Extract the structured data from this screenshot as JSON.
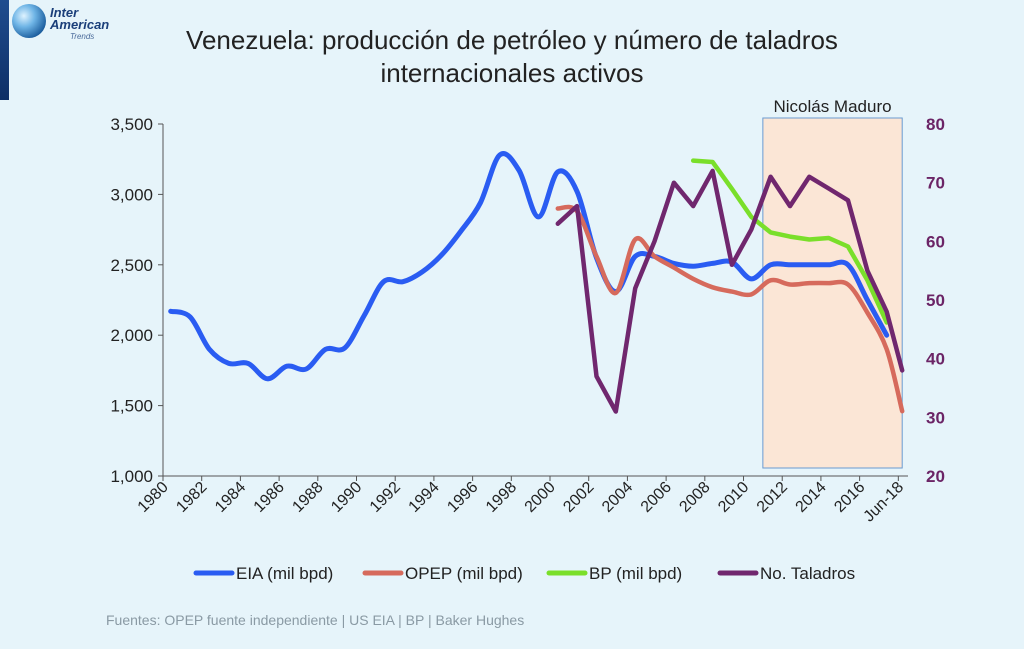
{
  "header": {
    "logo_line1": "Inter",
    "logo_line2": "American",
    "logo_line3": "Trends"
  },
  "footer": {
    "source": "Fuentes: OPEP fuente independiente | US EIA | BP | Baker Hughes"
  },
  "chart_data": {
    "type": "line",
    "title_line1": "Venezuela: producción de petróleo y número de taladros",
    "title_line2": "internacionales activos",
    "annotation": "Nicolás Maduro",
    "shaded_period": [
      2011,
      2018.2
    ],
    "x_range": [
      1980,
      2018.5
    ],
    "x_ticks": [
      {
        "x": 1980,
        "label": "1980"
      },
      {
        "x": 1982,
        "label": "1982"
      },
      {
        "x": 1984,
        "label": "1984"
      },
      {
        "x": 1986,
        "label": "1986"
      },
      {
        "x": 1988,
        "label": "1988"
      },
      {
        "x": 1990,
        "label": "1990"
      },
      {
        "x": 1992,
        "label": "1992"
      },
      {
        "x": 1994,
        "label": "1994"
      },
      {
        "x": 1996,
        "label": "1996"
      },
      {
        "x": 1998,
        "label": "1998"
      },
      {
        "x": 2000,
        "label": "2000"
      },
      {
        "x": 2002,
        "label": "2002"
      },
      {
        "x": 2004,
        "label": "2004"
      },
      {
        "x": 2006,
        "label": "2006"
      },
      {
        "x": 2008,
        "label": "2008"
      },
      {
        "x": 2010,
        "label": "2010"
      },
      {
        "x": 2012,
        "label": "2012"
      },
      {
        "x": 2014,
        "label": "2014"
      },
      {
        "x": 2016,
        "label": "2016"
      },
      {
        "x": 2018,
        "label": "Jun-18"
      }
    ],
    "y_left": {
      "min": 1000,
      "max": 3500,
      "ticks": [
        1000,
        1500,
        2000,
        2500,
        3000,
        3500
      ],
      "tick_labels": [
        "1,000",
        "1,500",
        "2,000",
        "2,500",
        "3,000",
        "3,500"
      ]
    },
    "y_right": {
      "min": 20,
      "max": 80,
      "ticks": [
        20,
        30,
        40,
        50,
        60,
        70,
        80
      ],
      "tick_labels": [
        "20",
        "30",
        "40",
        "50",
        "60",
        "70",
        "80"
      ]
    },
    "legend_position": "bottom",
    "series": [
      {
        "name": "EIA (mil bpd)",
        "axis": "left",
        "color": "#2a5cf2",
        "smooth": true,
        "points": [
          [
            1980.4,
            2170
          ],
          [
            1981.4,
            2130
          ],
          [
            1982.4,
            1900
          ],
          [
            1983.4,
            1800
          ],
          [
            1984.4,
            1800
          ],
          [
            1985.4,
            1690
          ],
          [
            1986.4,
            1780
          ],
          [
            1987.4,
            1760
          ],
          [
            1988.4,
            1900
          ],
          [
            1989.4,
            1910
          ],
          [
            1990.4,
            2140
          ],
          [
            1991.4,
            2380
          ],
          [
            1992.4,
            2380
          ],
          [
            1993.4,
            2450
          ],
          [
            1994.4,
            2570
          ],
          [
            1995.4,
            2740
          ],
          [
            1996.4,
            2940
          ],
          [
            1997.4,
            3280
          ],
          [
            1998.4,
            3170
          ],
          [
            1999.4,
            2840
          ],
          [
            2000.4,
            3160
          ],
          [
            2001.4,
            3020
          ],
          [
            2002.4,
            2550
          ],
          [
            2003.4,
            2310
          ],
          [
            2004.4,
            2560
          ],
          [
            2005.4,
            2560
          ],
          [
            2006.4,
            2510
          ],
          [
            2007.4,
            2490
          ],
          [
            2008.4,
            2510
          ],
          [
            2009.4,
            2520
          ],
          [
            2010.4,
            2400
          ],
          [
            2011.4,
            2500
          ],
          [
            2012.4,
            2500
          ],
          [
            2013.4,
            2500
          ],
          [
            2014.4,
            2500
          ],
          [
            2015.4,
            2500
          ],
          [
            2016.4,
            2250
          ],
          [
            2017.4,
            2000
          ]
        ]
      },
      {
        "name": "OPEP (mil bpd)",
        "axis": "left",
        "color": "#d66a5c",
        "smooth": true,
        "points": [
          [
            2000.4,
            2900
          ],
          [
            2001.4,
            2880
          ],
          [
            2002.4,
            2560
          ],
          [
            2003.4,
            2300
          ],
          [
            2004.4,
            2680
          ],
          [
            2005.4,
            2560
          ],
          [
            2006.4,
            2480
          ],
          [
            2007.4,
            2400
          ],
          [
            2008.4,
            2340
          ],
          [
            2009.4,
            2310
          ],
          [
            2010.4,
            2290
          ],
          [
            2011.4,
            2390
          ],
          [
            2012.4,
            2360
          ],
          [
            2013.4,
            2370
          ],
          [
            2014.4,
            2370
          ],
          [
            2015.4,
            2360
          ],
          [
            2016.4,
            2160
          ],
          [
            2017.4,
            1900
          ],
          [
            2018.2,
            1460
          ]
        ]
      },
      {
        "name": "BP (mil bpd)",
        "axis": "left",
        "color": "#7adf2a",
        "smooth": false,
        "points": [
          [
            2007.4,
            3240
          ],
          [
            2008.4,
            3230
          ],
          [
            2009.4,
            3040
          ],
          [
            2010.4,
            2840
          ],
          [
            2011.4,
            2730
          ],
          [
            2012.4,
            2700
          ],
          [
            2013.4,
            2680
          ],
          [
            2014.4,
            2690
          ],
          [
            2015.4,
            2630
          ],
          [
            2016.4,
            2390
          ],
          [
            2017.4,
            2090
          ]
        ]
      },
      {
        "name": "No. Taladros",
        "axis": "right",
        "color": "#70276e",
        "smooth": false,
        "points": [
          [
            2000.4,
            63
          ],
          [
            2001.4,
            66
          ],
          [
            2002.4,
            37
          ],
          [
            2003.4,
            31
          ],
          [
            2004.4,
            52
          ],
          [
            2005.4,
            60
          ],
          [
            2006.4,
            70
          ],
          [
            2007.4,
            66
          ],
          [
            2008.4,
            72
          ],
          [
            2009.4,
            56
          ],
          [
            2010.4,
            62
          ],
          [
            2011.4,
            71
          ],
          [
            2012.4,
            66
          ],
          [
            2013.4,
            71
          ],
          [
            2014.4,
            69
          ],
          [
            2015.4,
            67
          ],
          [
            2016.4,
            55
          ],
          [
            2017.4,
            48
          ],
          [
            2018.2,
            38
          ]
        ]
      }
    ]
  }
}
